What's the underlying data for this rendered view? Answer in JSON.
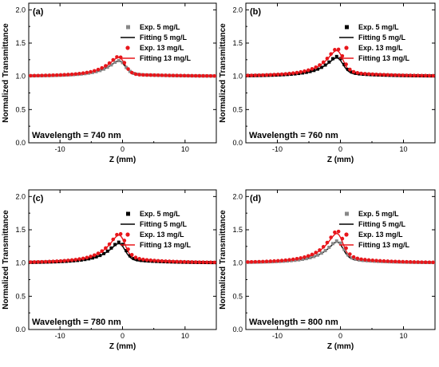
{
  "chart_data": [
    {
      "type": "scatter",
      "panel_label": "(a)",
      "annotation": "Wavelength = 740 nm",
      "xlabel": "Z (mm)",
      "ylabel": "Normalized Transmittance",
      "xlim": [
        -15,
        15
      ],
      "ylim": [
        0.0,
        2.1
      ],
      "xticks": [
        -10,
        0,
        10
      ],
      "yticks": [
        "0.0",
        "0.5",
        "1.0",
        "1.5",
        "2.0"
      ],
      "legend_position": "top-right",
      "params": {
        "fit5": [
          0.35,
          -0.3
        ],
        "fit13": [
          0.46,
          -0.36
        ],
        "exp5": [
          0.34,
          -0.31
        ],
        "exp13": [
          0.48,
          -0.38
        ]
      },
      "series": [
        {
          "name": "Exp.  5 mg/L",
          "kind": "markers",
          "marker": "square",
          "color": "#888888"
        },
        {
          "name": "Fitting 5 mg/L",
          "kind": "line",
          "color": "#000000"
        },
        {
          "name": "Exp. 13 mg/L",
          "kind": "markers",
          "marker": "circle",
          "color": "#e8161b"
        },
        {
          "name": "Fitting 13 mg/L",
          "kind": "line",
          "color": "#e8161b"
        }
      ]
    },
    {
      "type": "scatter",
      "panel_label": "(b)",
      "annotation": "Wavelength = 760 nm",
      "xlabel": "Z (mm)",
      "ylabel": "Normalized Transmittance",
      "xlim": [
        -15,
        15
      ],
      "ylim": [
        0.0,
        2.1
      ],
      "xticks": [
        -10,
        0,
        10
      ],
      "yticks": [
        "0.0",
        "0.5",
        "1.0",
        "1.5",
        "2.0"
      ],
      "legend_position": "top-right",
      "params": {
        "fit5": [
          0.42,
          -0.36
        ],
        "fit13": [
          0.6,
          -0.5
        ],
        "exp5": [
          0.4,
          -0.4
        ],
        "exp13": [
          0.58,
          -0.55
        ]
      },
      "series": [
        {
          "name": "Exp.  5 mg/L",
          "kind": "markers",
          "marker": "square",
          "color": "#000000"
        },
        {
          "name": "Fitting 5 mg/L",
          "kind": "line",
          "color": "#000000"
        },
        {
          "name": "Exp. 13 mg/L",
          "kind": "markers",
          "marker": "circle",
          "color": "#e8161b"
        },
        {
          "name": "Fitting 13 mg/L",
          "kind": "line",
          "color": "#e8161b"
        }
      ]
    },
    {
      "type": "scatter",
      "panel_label": "(c)",
      "annotation": "Wavelength = 780 nm",
      "xlabel": "Z (mm)",
      "ylabel": "Normalized Transmittance",
      "xlim": [
        -15,
        15
      ],
      "ylim": [
        0.0,
        2.1
      ],
      "xticks": [
        -10,
        0,
        10
      ],
      "yticks": [
        "0.0",
        "0.5",
        "1.0",
        "1.5",
        "2.0"
      ],
      "legend_position": "top-right",
      "params": {
        "fit5": [
          0.44,
          -0.38
        ],
        "fit13": [
          0.62,
          -0.55
        ],
        "exp5": [
          0.42,
          -0.42
        ],
        "exp13": [
          0.58,
          -0.6
        ]
      },
      "series": [
        {
          "name": "Exp.  5 mg/L",
          "kind": "markers",
          "marker": "square",
          "color": "#000000"
        },
        {
          "name": "Fitting 5 mg/L",
          "kind": "line",
          "color": "#000000"
        },
        {
          "name": "Exp. 13 mg/L",
          "kind": "markers",
          "marker": "circle",
          "color": "#e8161b"
        },
        {
          "name": "Fitting 13 mg/L",
          "kind": "line",
          "color": "#e8161b"
        }
      ]
    },
    {
      "type": "scatter",
      "panel_label": "(d)",
      "annotation": "Wavelength = 800 nm",
      "xlabel": "Z (mm)",
      "ylabel": "Normalized Transmittance",
      "xlim": [
        -15,
        15
      ],
      "ylim": [
        0.0,
        2.1
      ],
      "xticks": [
        -10,
        0,
        10
      ],
      "yticks": [
        "0.0",
        "0.5",
        "1.0",
        "1.5",
        "2.0"
      ],
      "legend_position": "top-right",
      "params": {
        "fit5": [
          0.44,
          -0.42
        ],
        "fit13": [
          0.66,
          -0.58
        ],
        "exp5": [
          0.42,
          -0.45
        ],
        "exp13": [
          0.63,
          -0.65
        ]
      },
      "series": [
        {
          "name": "Exp.  5 mg/L",
          "kind": "markers",
          "marker": "square",
          "color": "#888888"
        },
        {
          "name": "Fitting 5 mg/L",
          "kind": "line",
          "color": "#000000"
        },
        {
          "name": "Exp. 13 mg/L",
          "kind": "markers",
          "marker": "circle",
          "color": "#e8161b"
        },
        {
          "name": "Fitting 13 mg/L",
          "kind": "line",
          "color": "#e8161b"
        }
      ]
    }
  ]
}
